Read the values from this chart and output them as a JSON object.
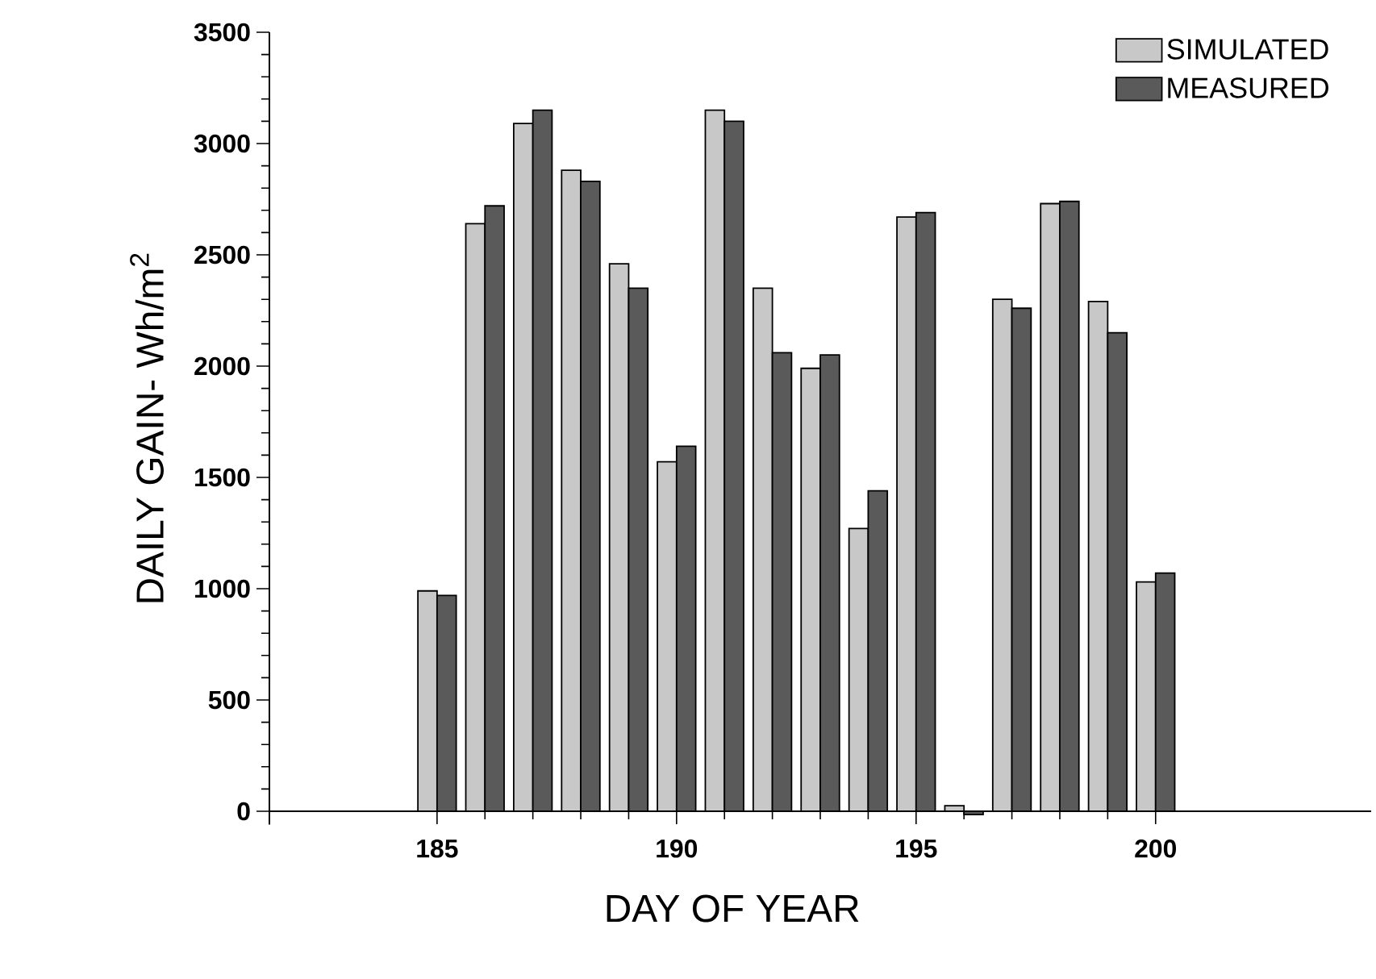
{
  "chart_data": {
    "type": "bar",
    "xlabel": "DAY OF YEAR",
    "ylabel": "DAILY GAIN- Wh/m$^{2}$",
    "x": [
      185,
      186,
      187,
      188,
      189,
      190,
      191,
      192,
      193,
      194,
      195,
      196,
      197,
      198,
      199,
      200
    ],
    "series": [
      {
        "name": "SIMULATED",
        "color": "#c8c8c8",
        "values": [
          990,
          2640,
          3090,
          2880,
          2460,
          1570,
          3150,
          2350,
          1990,
          1270,
          2670,
          25,
          2300,
          2730,
          2290,
          1030
        ]
      },
      {
        "name": "MEASURED",
        "color": "#5a5a5a",
        "values": [
          970,
          2720,
          3150,
          2830,
          2350,
          1640,
          3100,
          2060,
          2050,
          1440,
          2690,
          -15,
          2260,
          2740,
          2150,
          1070
        ]
      }
    ],
    "xlim": [
      181.5,
      204.5
    ],
    "xticks": [
      185,
      190,
      195,
      200
    ],
    "ylim": [
      -60,
      3500
    ],
    "yticks": [
      0,
      500,
      1000,
      1500,
      2000,
      2500,
      3000,
      3500
    ],
    "grid": false,
    "legend": "top right"
  }
}
